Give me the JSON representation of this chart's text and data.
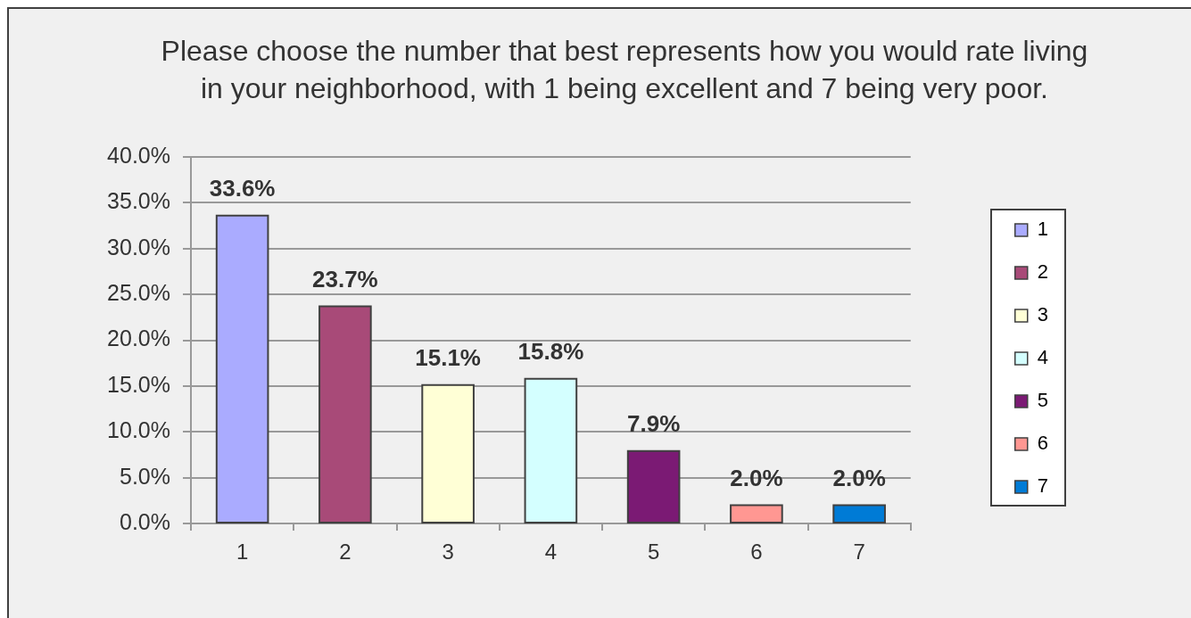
{
  "chart_data": {
    "type": "bar",
    "title": "Please choose the number that best represents how you would rate living in your neighborhood, with 1 being excellent and 7 being very poor.",
    "categories": [
      "1",
      "2",
      "3",
      "4",
      "5",
      "6",
      "7"
    ],
    "series": [
      {
        "name": "1",
        "color": "#aaabff",
        "values": [
          33.6,
          null,
          null,
          null,
          null,
          null,
          null
        ],
        "value_labels": [
          "33.6%",
          null,
          null,
          null,
          null,
          null,
          null
        ]
      },
      {
        "name": "2",
        "color": "#a84a78",
        "values": [
          null,
          23.7,
          null,
          null,
          null,
          null,
          null
        ],
        "value_labels": [
          null,
          "23.7%",
          null,
          null,
          null,
          null,
          null
        ]
      },
      {
        "name": "3",
        "color": "#ffffd6",
        "values": [
          null,
          null,
          15.1,
          null,
          null,
          null,
          null
        ],
        "value_labels": [
          null,
          null,
          "15.1%",
          null,
          null,
          null,
          null
        ]
      },
      {
        "name": "4",
        "color": "#d4ffff",
        "values": [
          null,
          null,
          null,
          15.8,
          null,
          null,
          null
        ],
        "value_labels": [
          null,
          null,
          null,
          "15.8%",
          null,
          null,
          null
        ]
      },
      {
        "name": "5",
        "color": "#7b1a74",
        "values": [
          null,
          null,
          null,
          null,
          7.9,
          null,
          null
        ],
        "value_labels": [
          null,
          null,
          null,
          null,
          "7.9%",
          null,
          null
        ]
      },
      {
        "name": "6",
        "color": "#ff9792",
        "values": [
          null,
          null,
          null,
          null,
          null,
          2.0,
          null
        ],
        "value_labels": [
          null,
          null,
          null,
          null,
          null,
          "2.0%",
          null
        ]
      },
      {
        "name": "7",
        "color": "#007bd6",
        "values": [
          null,
          null,
          null,
          null,
          null,
          null,
          2.0
        ],
        "value_labels": [
          null,
          null,
          null,
          null,
          null,
          null,
          "2.0%"
        ]
      }
    ],
    "ylim": [
      0,
      40
    ],
    "yticks": [
      {
        "value": 0,
        "label": "0.0%"
      },
      {
        "value": 5,
        "label": "5.0%"
      },
      {
        "value": 10,
        "label": "10.0%"
      },
      {
        "value": 15,
        "label": "15.0%"
      },
      {
        "value": 20,
        "label": "20.0%"
      },
      {
        "value": 25,
        "label": "25.0%"
      },
      {
        "value": 30,
        "label": "30.0%"
      },
      {
        "value": 35,
        "label": "35.0%"
      },
      {
        "value": 40,
        "label": "40.0%"
      }
    ],
    "grid": "y",
    "legend": "right"
  }
}
